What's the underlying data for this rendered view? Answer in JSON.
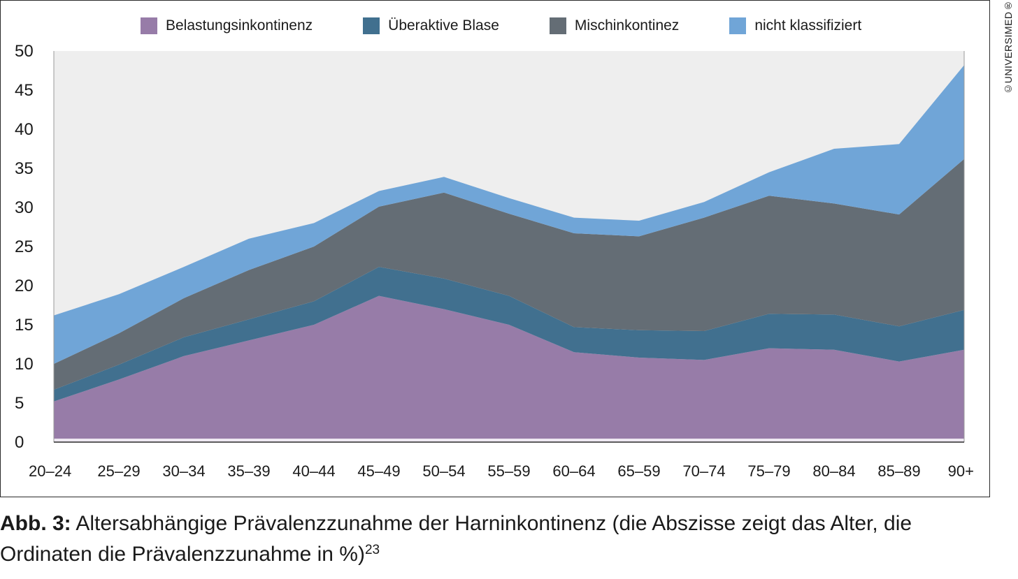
{
  "caption": {
    "label": "Abb. 3:",
    "text": " Altersabhängige Prävalenzzunahme der Harninkontinenz (die Abszisse zeigt das Alter, die Ordinaten die Prävalenzzunahme in %)",
    "ref": "23"
  },
  "copyright": "©UNIVERSIMED®",
  "chart_data": {
    "type": "area",
    "stacked": true,
    "title": "",
    "xlabel": "",
    "ylabel": "",
    "ylim": [
      0,
      50
    ],
    "yticks": [
      0,
      5,
      10,
      15,
      20,
      25,
      30,
      35,
      40,
      45,
      50
    ],
    "grid": false,
    "legend_position": "top",
    "categories": [
      "20–24",
      "25–29",
      "30–34",
      "35–39",
      "40–44",
      "45–49",
      "50–54",
      "55–59",
      "60–64",
      "65–59",
      "70–74",
      "75–79",
      "80–84",
      "85–89",
      "90+"
    ],
    "series": [
      {
        "name": "Belastungsinkontinenz",
        "color": "#977ca8",
        "values": [
          5.2,
          8,
          11,
          13,
          15,
          18.7,
          17,
          15,
          11.5,
          10.8,
          10.5,
          12,
          11.8,
          10.3,
          11.8
        ]
      },
      {
        "name": "Überaktive Blase",
        "color": "#41708f",
        "values": [
          1.5,
          1.9,
          2.4,
          2.7,
          3,
          3.7,
          3.9,
          3.7,
          3.2,
          3.5,
          3.7,
          4.4,
          4.5,
          4.5,
          5.1
        ]
      },
      {
        "name": "Mischinkontinez",
        "color": "#646d75",
        "values": [
          3.3,
          4,
          5,
          6.3,
          7,
          7.7,
          11,
          10.5,
          12,
          12,
          14.5,
          15.1,
          14.2,
          14.3,
          19.3
        ]
      },
      {
        "name": "nicht klassifiziert",
        "color": "#70a5d7",
        "values": [
          6.2,
          5,
          4,
          4,
          3,
          2,
          2,
          2,
          2,
          2,
          2,
          3,
          7,
          9,
          12
        ]
      }
    ],
    "plot_background": "#eeeeee"
  }
}
